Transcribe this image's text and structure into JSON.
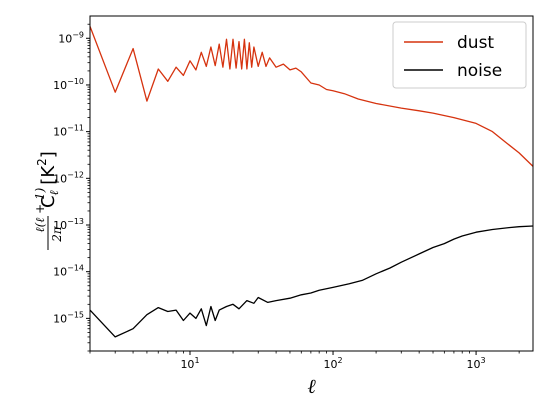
{
  "chart_data": {
    "type": "line",
    "xscale": "log",
    "yscale": "log",
    "xlim": [
      2,
      2500
    ],
    "ylim": [
      2e-16,
      3e-09
    ],
    "xlabel": "ℓ",
    "ylabel": "ℓ(ℓ+1)/2π C_ℓ [K²]",
    "grid": false,
    "legend_position": "top-right",
    "x_ticks": [
      {
        "value": 10,
        "label": "10",
        "exp": "1"
      },
      {
        "value": 100,
        "label": "10",
        "exp": "2"
      },
      {
        "value": 1000,
        "label": "10",
        "exp": "3"
      }
    ],
    "y_ticks": [
      {
        "value": 1e-09,
        "label": "10",
        "exp": "−9"
      },
      {
        "value": 1e-10,
        "label": "10",
        "exp": "−10"
      },
      {
        "value": 1e-11,
        "label": "10",
        "exp": "−11"
      },
      {
        "value": 1e-12,
        "label": "10",
        "exp": "−12"
      },
      {
        "value": 1e-13,
        "label": "10",
        "exp": "−13"
      },
      {
        "value": 1e-14,
        "label": "10",
        "exp": "−14"
      },
      {
        "value": 1e-15,
        "label": "10",
        "exp": "−15"
      }
    ],
    "series": [
      {
        "name": "dust",
        "color": "#d6330f",
        "points": [
          [
            2,
            1.8e-09
          ],
          [
            3,
            7e-11
          ],
          [
            4,
            6e-10
          ],
          [
            5,
            4.5e-11
          ],
          [
            6,
            2.2e-10
          ],
          [
            7,
            1.2e-10
          ],
          [
            8,
            2.4e-10
          ],
          [
            9,
            1.6e-10
          ],
          [
            10,
            3.3e-10
          ],
          [
            11,
            2.1e-10
          ],
          [
            12,
            5e-10
          ],
          [
            13,
            2.5e-10
          ],
          [
            14,
            6.5e-10
          ],
          [
            15,
            2.6e-10
          ],
          [
            16,
            7.5e-10
          ],
          [
            17,
            2.4e-10
          ],
          [
            18,
            9.5e-10
          ],
          [
            19,
            2.2e-10
          ],
          [
            20,
            9.5e-10
          ],
          [
            21,
            2.3e-10
          ],
          [
            22,
            8.5e-10
          ],
          [
            23,
            2.2e-10
          ],
          [
            24,
            9.5e-10
          ],
          [
            25,
            2.2e-10
          ],
          [
            26,
            8e-10
          ],
          [
            27,
            2.4e-10
          ],
          [
            28,
            6.5e-10
          ],
          [
            30,
            2.5e-10
          ],
          [
            32,
            5e-10
          ],
          [
            34,
            2.5e-10
          ],
          [
            36,
            3.8e-10
          ],
          [
            40,
            2.4e-10
          ],
          [
            45,
            2.8e-10
          ],
          [
            50,
            2.1e-10
          ],
          [
            55,
            2.3e-10
          ],
          [
            60,
            1.9e-10
          ],
          [
            70,
            1.1e-10
          ],
          [
            80,
            1e-10
          ],
          [
            90,
            8e-11
          ],
          [
            100,
            7.5e-11
          ],
          [
            120,
            6.5e-11
          ],
          [
            150,
            5e-11
          ],
          [
            200,
            4e-11
          ],
          [
            300,
            3.2e-11
          ],
          [
            400,
            2.8e-11
          ],
          [
            500,
            2.5e-11
          ],
          [
            700,
            2e-11
          ],
          [
            1000,
            1.5e-11
          ],
          [
            1300,
            1e-11
          ],
          [
            1600,
            6e-12
          ],
          [
            2000,
            3.5e-12
          ],
          [
            2500,
            1.8e-12
          ]
        ]
      },
      {
        "name": "noise",
        "color": "#000000",
        "points": [
          [
            2,
            1.5e-15
          ],
          [
            3,
            4e-16
          ],
          [
            4,
            6e-16
          ],
          [
            5,
            1.2e-15
          ],
          [
            6,
            1.7e-15
          ],
          [
            7,
            1.4e-15
          ],
          [
            8,
            1.5e-15
          ],
          [
            9,
            9e-16
          ],
          [
            10,
            1.3e-15
          ],
          [
            11,
            1e-15
          ],
          [
            12,
            1.6e-15
          ],
          [
            13,
            7e-16
          ],
          [
            14,
            1.8e-15
          ],
          [
            15,
            9e-16
          ],
          [
            16,
            1.5e-15
          ],
          [
            18,
            1.8e-15
          ],
          [
            20,
            2e-15
          ],
          [
            22,
            1.6e-15
          ],
          [
            25,
            2.4e-15
          ],
          [
            28,
            2.1e-15
          ],
          [
            30,
            2.8e-15
          ],
          [
            35,
            2.2e-15
          ],
          [
            40,
            2.4e-15
          ],
          [
            50,
            2.7e-15
          ],
          [
            60,
            3.2e-15
          ],
          [
            70,
            3.5e-15
          ],
          [
            80,
            4e-15
          ],
          [
            100,
            4.6e-15
          ],
          [
            130,
            5.5e-15
          ],
          [
            160,
            6.5e-15
          ],
          [
            200,
            9e-15
          ],
          [
            250,
            1.2e-14
          ],
          [
            300,
            1.6e-14
          ],
          [
            400,
            2.4e-14
          ],
          [
            500,
            3.3e-14
          ],
          [
            600,
            4e-14
          ],
          [
            700,
            5e-14
          ],
          [
            800,
            5.8e-14
          ],
          [
            1000,
            7e-14
          ],
          [
            1300,
            8e-14
          ],
          [
            1700,
            8.8e-14
          ],
          [
            2000,
            9.2e-14
          ],
          [
            2500,
            9.5e-14
          ]
        ]
      }
    ]
  }
}
